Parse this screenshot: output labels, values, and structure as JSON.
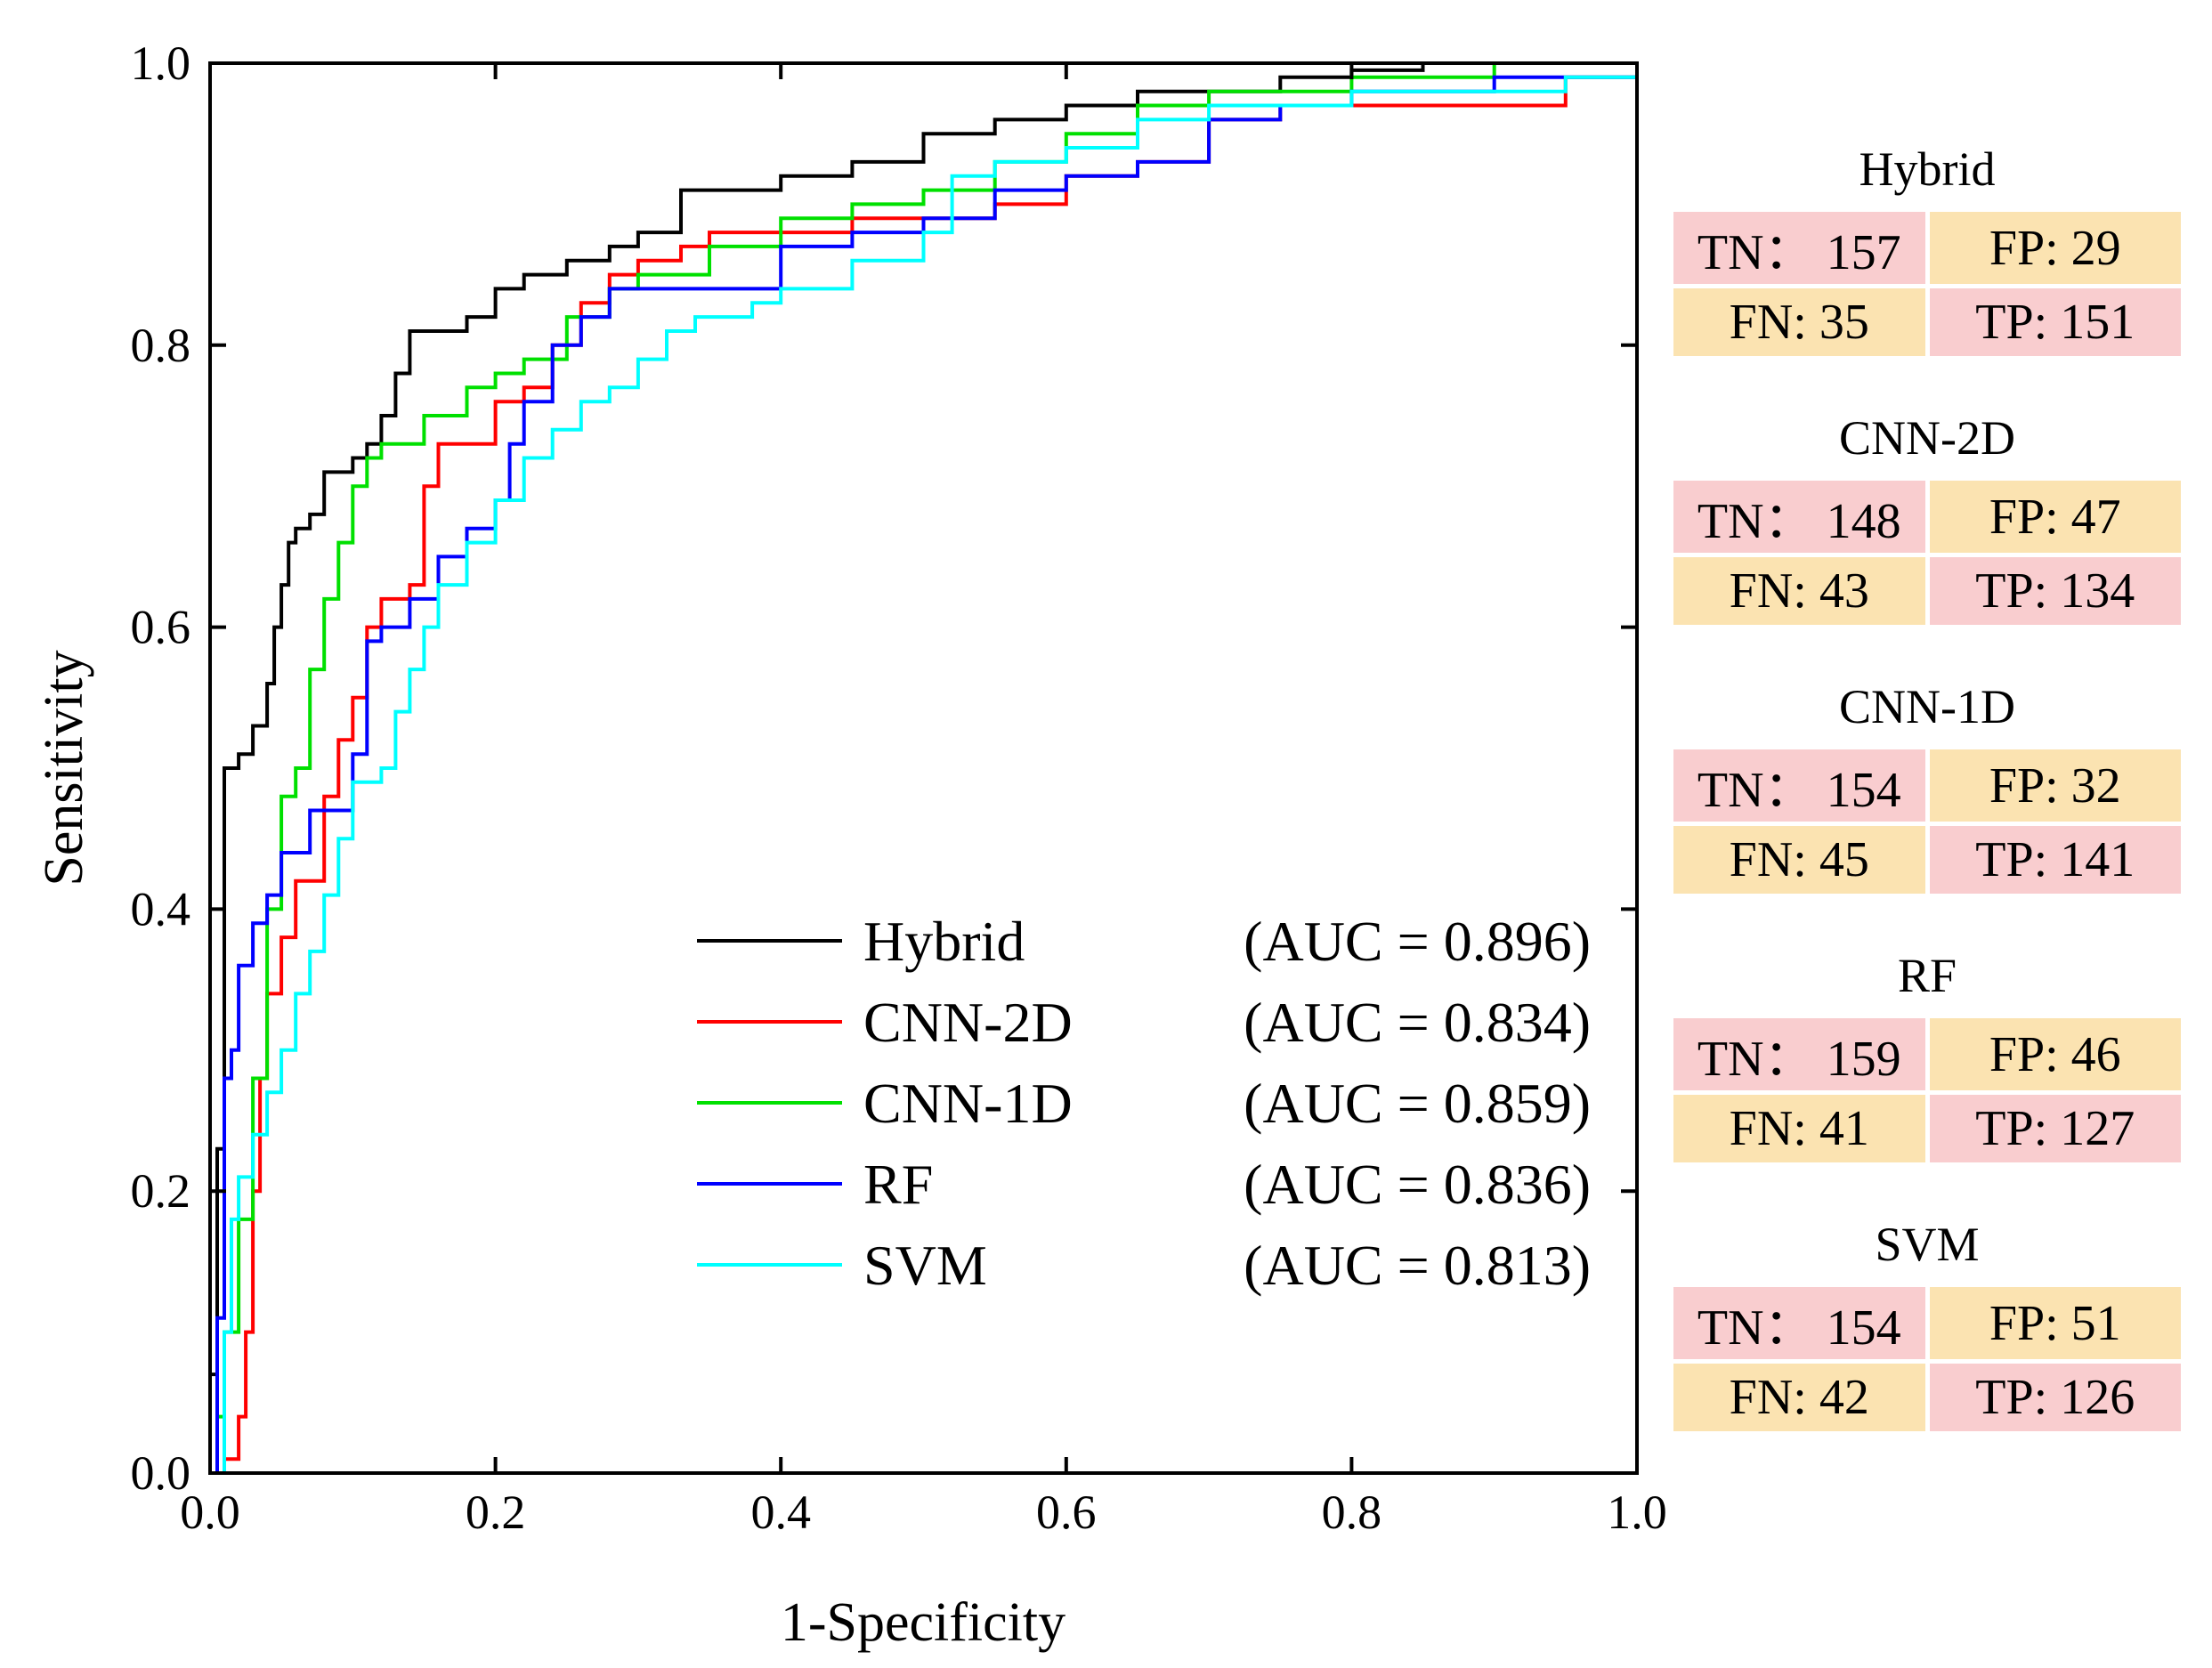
{
  "chart_data": {
    "type": "line",
    "title": "",
    "xlabel": "1-Specificity",
    "ylabel": "Sensitivity",
    "xlim": [
      0.0,
      1.0
    ],
    "ylim": [
      0.0,
      1.0
    ],
    "xticks": [
      "0.0",
      "0.2",
      "0.4",
      "0.6",
      "0.8",
      "1.0"
    ],
    "yticks": [
      "0.0",
      "0.2",
      "0.4",
      "0.6",
      "0.8",
      "1.0"
    ],
    "grid": false,
    "legend_position": "bottom-center",
    "series": [
      {
        "name": "Hybrid",
        "auc_label": "(AUC = 0.896)",
        "color": "#000000",
        "points": [
          [
            0,
            0
          ],
          [
            0,
            0.07
          ],
          [
            0.005,
            0.23
          ],
          [
            0.01,
            0.5
          ],
          [
            0.02,
            0.51
          ],
          [
            0.03,
            0.53
          ],
          [
            0.04,
            0.56
          ],
          [
            0.045,
            0.6
          ],
          [
            0.05,
            0.63
          ],
          [
            0.055,
            0.66
          ],
          [
            0.06,
            0.67
          ],
          [
            0.07,
            0.68
          ],
          [
            0.08,
            0.71
          ],
          [
            0.1,
            0.72
          ],
          [
            0.11,
            0.73
          ],
          [
            0.12,
            0.75
          ],
          [
            0.13,
            0.78
          ],
          [
            0.14,
            0.81
          ],
          [
            0.16,
            0.81
          ],
          [
            0.18,
            0.82
          ],
          [
            0.2,
            0.84
          ],
          [
            0.22,
            0.85
          ],
          [
            0.25,
            0.86
          ],
          [
            0.28,
            0.87
          ],
          [
            0.3,
            0.88
          ],
          [
            0.33,
            0.91
          ],
          [
            0.4,
            0.92
          ],
          [
            0.45,
            0.93
          ],
          [
            0.5,
            0.95
          ],
          [
            0.55,
            0.96
          ],
          [
            0.6,
            0.97
          ],
          [
            0.65,
            0.98
          ],
          [
            0.75,
            0.99
          ],
          [
            0.8,
            0.995
          ],
          [
            0.85,
            1.0
          ],
          [
            1.0,
            1.0
          ]
        ]
      },
      {
        "name": "CNN-2D",
        "auc_label": "(AUC = 0.834)",
        "color": "#ff0000",
        "points": [
          [
            0,
            0
          ],
          [
            0.01,
            0.01
          ],
          [
            0.02,
            0.04
          ],
          [
            0.025,
            0.1
          ],
          [
            0.03,
            0.2
          ],
          [
            0.035,
            0.28
          ],
          [
            0.04,
            0.34
          ],
          [
            0.05,
            0.38
          ],
          [
            0.06,
            0.42
          ],
          [
            0.08,
            0.48
          ],
          [
            0.09,
            0.52
          ],
          [
            0.1,
            0.55
          ],
          [
            0.11,
            0.6
          ],
          [
            0.12,
            0.62
          ],
          [
            0.14,
            0.63
          ],
          [
            0.15,
            0.7
          ],
          [
            0.16,
            0.73
          ],
          [
            0.2,
            0.76
          ],
          [
            0.22,
            0.77
          ],
          [
            0.24,
            0.8
          ],
          [
            0.26,
            0.83
          ],
          [
            0.28,
            0.85
          ],
          [
            0.3,
            0.86
          ],
          [
            0.33,
            0.87
          ],
          [
            0.35,
            0.88
          ],
          [
            0.4,
            0.88
          ],
          [
            0.45,
            0.89
          ],
          [
            0.5,
            0.89
          ],
          [
            0.55,
            0.9
          ],
          [
            0.6,
            0.92
          ],
          [
            0.65,
            0.93
          ],
          [
            0.7,
            0.96
          ],
          [
            0.75,
            0.97
          ],
          [
            0.8,
            0.97
          ],
          [
            0.9,
            0.97
          ],
          [
            0.95,
            0.99
          ],
          [
            1.0,
            1.0
          ]
        ]
      },
      {
        "name": "CNN-1D",
        "auc_label": "(AUC = 0.859)",
        "color": "#00e000",
        "points": [
          [
            0,
            0
          ],
          [
            0.005,
            0.04
          ],
          [
            0.01,
            0.1
          ],
          [
            0.02,
            0.18
          ],
          [
            0.03,
            0.28
          ],
          [
            0.04,
            0.4
          ],
          [
            0.05,
            0.48
          ],
          [
            0.06,
            0.5
          ],
          [
            0.07,
            0.57
          ],
          [
            0.08,
            0.62
          ],
          [
            0.09,
            0.66
          ],
          [
            0.1,
            0.7
          ],
          [
            0.11,
            0.72
          ],
          [
            0.12,
            0.73
          ],
          [
            0.15,
            0.75
          ],
          [
            0.18,
            0.77
          ],
          [
            0.2,
            0.78
          ],
          [
            0.22,
            0.79
          ],
          [
            0.25,
            0.82
          ],
          [
            0.28,
            0.84
          ],
          [
            0.3,
            0.85
          ],
          [
            0.35,
            0.87
          ],
          [
            0.4,
            0.89
          ],
          [
            0.45,
            0.9
          ],
          [
            0.5,
            0.91
          ],
          [
            0.55,
            0.93
          ],
          [
            0.6,
            0.95
          ],
          [
            0.65,
            0.97
          ],
          [
            0.7,
            0.98
          ],
          [
            0.8,
            0.99
          ],
          [
            0.9,
            1.0
          ],
          [
            1.0,
            1.0
          ]
        ]
      },
      {
        "name": "RF",
        "auc_label": "(AUC = 0.836)",
        "color": "#0000ff",
        "points": [
          [
            0,
            0
          ],
          [
            0.005,
            0.11
          ],
          [
            0.01,
            0.28
          ],
          [
            0.015,
            0.3
          ],
          [
            0.02,
            0.36
          ],
          [
            0.03,
            0.39
          ],
          [
            0.04,
            0.41
          ],
          [
            0.05,
            0.44
          ],
          [
            0.07,
            0.47
          ],
          [
            0.09,
            0.47
          ],
          [
            0.1,
            0.51
          ],
          [
            0.11,
            0.59
          ],
          [
            0.12,
            0.6
          ],
          [
            0.14,
            0.62
          ],
          [
            0.16,
            0.65
          ],
          [
            0.18,
            0.67
          ],
          [
            0.2,
            0.69
          ],
          [
            0.21,
            0.73
          ],
          [
            0.22,
            0.76
          ],
          [
            0.24,
            0.8
          ],
          [
            0.26,
            0.82
          ],
          [
            0.28,
            0.84
          ],
          [
            0.3,
            0.84
          ],
          [
            0.35,
            0.84
          ],
          [
            0.4,
            0.87
          ],
          [
            0.45,
            0.88
          ],
          [
            0.5,
            0.89
          ],
          [
            0.55,
            0.91
          ],
          [
            0.6,
            0.92
          ],
          [
            0.65,
            0.93
          ],
          [
            0.7,
            0.96
          ],
          [
            0.75,
            0.97
          ],
          [
            0.8,
            0.98
          ],
          [
            0.9,
            0.99
          ],
          [
            1.0,
            1.0
          ]
        ]
      },
      {
        "name": "SVM",
        "auc_label": "(AUC = 0.813)",
        "color": "#00ffff",
        "points": [
          [
            0,
            0
          ],
          [
            0.01,
            0.1
          ],
          [
            0.015,
            0.18
          ],
          [
            0.02,
            0.21
          ],
          [
            0.03,
            0.24
          ],
          [
            0.04,
            0.27
          ],
          [
            0.05,
            0.3
          ],
          [
            0.06,
            0.34
          ],
          [
            0.07,
            0.37
          ],
          [
            0.08,
            0.41
          ],
          [
            0.09,
            0.45
          ],
          [
            0.1,
            0.49
          ],
          [
            0.12,
            0.5
          ],
          [
            0.13,
            0.54
          ],
          [
            0.14,
            0.57
          ],
          [
            0.15,
            0.6
          ],
          [
            0.16,
            0.63
          ],
          [
            0.18,
            0.66
          ],
          [
            0.2,
            0.69
          ],
          [
            0.22,
            0.72
          ],
          [
            0.24,
            0.74
          ],
          [
            0.26,
            0.76
          ],
          [
            0.28,
            0.77
          ],
          [
            0.3,
            0.79
          ],
          [
            0.32,
            0.81
          ],
          [
            0.34,
            0.82
          ],
          [
            0.38,
            0.83
          ],
          [
            0.4,
            0.84
          ],
          [
            0.45,
            0.86
          ],
          [
            0.5,
            0.88
          ],
          [
            0.52,
            0.92
          ],
          [
            0.55,
            0.93
          ],
          [
            0.6,
            0.94
          ],
          [
            0.65,
            0.96
          ],
          [
            0.7,
            0.97
          ],
          [
            0.8,
            0.98
          ],
          [
            0.9,
            0.98
          ],
          [
            0.95,
            0.99
          ],
          [
            1.0,
            1.0
          ]
        ]
      }
    ]
  },
  "confusion_matrices": [
    {
      "title": "Hybrid",
      "tn": "TN： 157",
      "fp": "FP: 29",
      "fn": "FN: 35",
      "tp": "TP: 151"
    },
    {
      "title": "CNN-2D",
      "tn": "TN： 148",
      "fp": "FP: 47",
      "fn": "FN: 43",
      "tp": "TP: 134"
    },
    {
      "title": "CNN-1D",
      "tn": "TN： 154",
      "fp": "FP: 32",
      "fn": "FN: 45",
      "tp": "TP: 141"
    },
    {
      "title": "RF",
      "tn": "TN： 159",
      "fp": "FP: 46",
      "fn": "FN: 41",
      "tp": "TP: 127"
    },
    {
      "title": "SVM",
      "tn": "TN： 154",
      "fp": "FP: 51",
      "fn": "FN: 42",
      "tp": "TP: 126"
    }
  ],
  "colors": {
    "pink_cell": "#f9cdcf",
    "tan_cell": "#fbe3b1"
  }
}
